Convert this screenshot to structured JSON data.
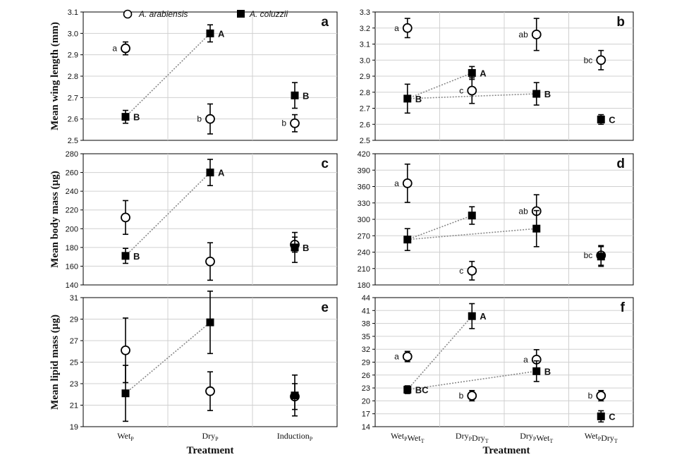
{
  "legend": [
    {
      "name": "A. arabiensis",
      "marker": "open-circle"
    },
    {
      "name": "A. coluzzii",
      "marker": "filled-square"
    }
  ],
  "x_axis_title": "Treatment",
  "colors": {
    "marker": "#000000",
    "line": "#888888",
    "grid": "#d0d0d0",
    "background": "#ffffff"
  },
  "chart_data": [
    {
      "type": "scatter",
      "panel": "a",
      "grid": true,
      "ylabel": "Mean wing length (mm)",
      "ylim": [
        2.5,
        3.1
      ],
      "yticks": [
        "2.5",
        "2.6",
        "2.7",
        "2.8",
        "2.9",
        "3.0",
        "3.1"
      ],
      "categories": [
        [
          "Wet",
          "P"
        ],
        [
          "Dry",
          "P"
        ],
        [
          "Induction",
          "P"
        ]
      ],
      "series": [
        {
          "name": "A. arabiensis",
          "marker": "circle",
          "values": [
            2.93,
            2.6,
            2.58
          ],
          "errors": [
            0.03,
            0.07,
            0.04
          ],
          "labels": [
            "a",
            "b",
            "b"
          ]
        },
        {
          "name": "A. coluzzii",
          "marker": "square",
          "values": [
            2.61,
            3.0,
            2.71
          ],
          "errors": [
            0.03,
            0.04,
            0.06
          ],
          "labels": [
            "B",
            "A",
            "B"
          ]
        }
      ],
      "links": [
        {
          "series": 1,
          "from": 0,
          "to": 1
        }
      ]
    },
    {
      "type": "scatter",
      "panel": "b",
      "grid": true,
      "ylabel": "",
      "ylim": [
        2.5,
        3.3
      ],
      "yticks": [
        "2.5",
        "2.6",
        "2.7",
        "2.8",
        "2.9",
        "3.0",
        "3.1",
        "3.2",
        "3.3"
      ],
      "categories": [
        [
          "Wet",
          "P",
          "Wet",
          "T"
        ],
        [
          "Dry",
          "P",
          "Dry",
          "T"
        ],
        [
          "Dry",
          "P",
          "Wet",
          "T"
        ],
        [
          "Wet",
          "P",
          "Dry",
          "T"
        ]
      ],
      "series": [
        {
          "name": "A. arabiensis",
          "marker": "circle",
          "values": [
            3.2,
            2.81,
            3.16,
            3.0
          ],
          "errors": [
            0.06,
            0.08,
            0.1,
            0.06
          ],
          "labels": [
            "a",
            "c",
            "ab",
            "bc"
          ]
        },
        {
          "name": "A. coluzzii",
          "marker": "square",
          "values": [
            2.76,
            2.92,
            2.79,
            2.63
          ],
          "errors": [
            0.09,
            0.04,
            0.07,
            0.03
          ],
          "labels": [
            "B",
            "A",
            "B",
            "C"
          ]
        }
      ],
      "links": [
        {
          "series": 1,
          "from": 0,
          "to": 1
        },
        {
          "series": 1,
          "from": 0,
          "to": 2
        }
      ]
    },
    {
      "type": "scatter",
      "panel": "c",
      "grid": true,
      "ylabel": "Mean body mass (µg)",
      "ylim": [
        140,
        280
      ],
      "yticks": [
        "140",
        "160",
        "180",
        "200",
        "220",
        "240",
        "260",
        "280"
      ],
      "categories": [
        [
          "Wet",
          "P"
        ],
        [
          "Dry",
          "P"
        ],
        [
          "Induction",
          "P"
        ]
      ],
      "series": [
        {
          "name": "A. arabiensis",
          "marker": "circle",
          "values": [
            212,
            165,
            183
          ],
          "errors": [
            18,
            20,
            8
          ],
          "labels": [
            "",
            "",
            ""
          ]
        },
        {
          "name": "A. coluzzii",
          "marker": "square",
          "values": [
            171,
            260,
            180
          ],
          "errors": [
            8,
            14,
            16
          ],
          "labels": [
            "B",
            "A",
            "B"
          ]
        }
      ],
      "links": [
        {
          "series": 1,
          "from": 0,
          "to": 1
        }
      ]
    },
    {
      "type": "scatter",
      "panel": "d",
      "grid": true,
      "ylabel": "",
      "ylim": [
        180,
        420
      ],
      "yticks": [
        "180",
        "210",
        "240",
        "270",
        "300",
        "330",
        "360",
        "390",
        "420"
      ],
      "categories": [
        [
          "Wet",
          "P",
          "Wet",
          "T"
        ],
        [
          "Dry",
          "P",
          "Dry",
          "T"
        ],
        [
          "Dry",
          "P",
          "Wet",
          "T"
        ],
        [
          "Wet",
          "P",
          "Dry",
          "T"
        ]
      ],
      "series": [
        {
          "name": "A. arabiensis",
          "marker": "circle",
          "values": [
            366,
            206,
            315,
            234
          ],
          "errors": [
            35,
            17,
            30,
            18
          ],
          "labels": [
            "a",
            "c",
            "ab",
            "bc"
          ]
        },
        {
          "name": "A. coluzzii",
          "marker": "square",
          "values": [
            263,
            307,
            283,
            232
          ],
          "errors": [
            20,
            16,
            33,
            18
          ],
          "labels": [
            "",
            "",
            "",
            ""
          ]
        }
      ],
      "links": [
        {
          "series": 1,
          "from": 0,
          "to": 1
        },
        {
          "series": 1,
          "from": 0,
          "to": 2
        }
      ]
    },
    {
      "type": "scatter",
      "panel": "e",
      "grid": true,
      "ylabel": "Mean lipid mass (µg)",
      "ylim": [
        19,
        31
      ],
      "yticks": [
        "19",
        "21",
        "23",
        "25",
        "27",
        "29",
        "31"
      ],
      "categories": [
        [
          "Wet",
          "P"
        ],
        [
          "Dry",
          "P"
        ],
        [
          "Induction",
          "P"
        ]
      ],
      "series": [
        {
          "name": "A. arabiensis",
          "marker": "circle",
          "values": [
            26.1,
            22.3,
            21.8
          ],
          "errors": [
            3.0,
            1.8,
            1.2
          ],
          "labels": [
            "",
            "",
            ""
          ]
        },
        {
          "name": "A. coluzzii",
          "marker": "square",
          "values": [
            22.1,
            28.7,
            21.9
          ],
          "errors": [
            2.6,
            2.9,
            1.9
          ],
          "labels": [
            "",
            "",
            ""
          ]
        }
      ],
      "links": [
        {
          "series": 1,
          "from": 0,
          "to": 1
        }
      ]
    },
    {
      "type": "scatter",
      "panel": "f",
      "grid": true,
      "ylabel": "",
      "ylim": [
        14,
        44
      ],
      "yticks": [
        "14",
        "17",
        "20",
        "23",
        "26",
        "29",
        "32",
        "35",
        "38",
        "41",
        "44"
      ],
      "categories": [
        [
          "Wet",
          "P",
          "Wet",
          "T"
        ],
        [
          "Dry",
          "P",
          "Dry",
          "T"
        ],
        [
          "Dry",
          "P",
          "Wet",
          "T"
        ],
        [
          "Wet",
          "P",
          "Dry",
          "T"
        ]
      ],
      "series": [
        {
          "name": "A. arabiensis",
          "marker": "circle",
          "values": [
            30.3,
            21.2,
            29.6,
            21.2
          ],
          "errors": [
            1.2,
            1.2,
            2.3,
            1.2
          ],
          "labels": [
            "a",
            "b",
            "a",
            "b"
          ]
        },
        {
          "name": "A. coluzzii",
          "marker": "square",
          "values": [
            22.6,
            39.7,
            26.9,
            16.4
          ],
          "errors": [
            0.9,
            2.9,
            2.4,
            1.3
          ],
          "labels": [
            "BC",
            "A",
            "B",
            "C"
          ]
        }
      ],
      "links": [
        {
          "series": 1,
          "from": 0,
          "to": 1
        },
        {
          "series": 1,
          "from": 0,
          "to": 2
        }
      ]
    }
  ]
}
